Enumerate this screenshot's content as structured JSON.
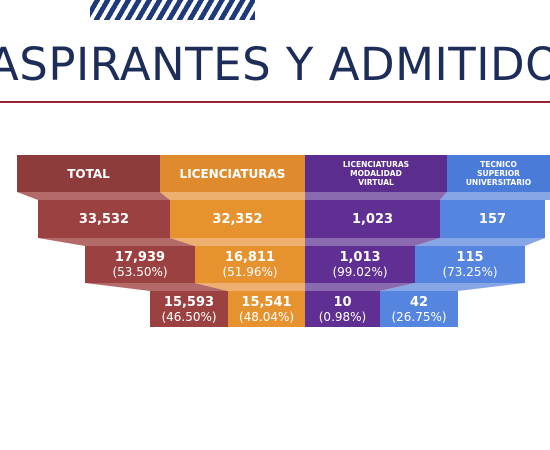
{
  "header": {
    "title": "ASPIRANTES Y ADMITIDOS"
  },
  "table": {
    "columns": [
      "TOTAL",
      "LICENCIATURAS",
      "LICENCIATURAS\nMODALIDAD\nVIRTUAL",
      "TECNICO\nSUPERIOR\nUNIVERSITARIO"
    ],
    "rows": [
      [
        {
          "value": "33,532"
        },
        {
          "value": "32,352"
        },
        {
          "value": "1,023"
        },
        {
          "value": "157"
        }
      ],
      [
        {
          "value": "17,939",
          "percent": "(53.50%)"
        },
        {
          "value": "16,811",
          "percent": "(51.96%)"
        },
        {
          "value": "1,013",
          "percent": "(99.02%)"
        },
        {
          "value": "115",
          "percent": "(73.25%)"
        }
      ],
      [
        {
          "value": "15,593",
          "percent": "(46.50%)"
        },
        {
          "value": "15,541",
          "percent": "(48.04%)"
        },
        {
          "value": "10",
          "percent": "(0.98%)"
        },
        {
          "value": "42",
          "percent": "(26.75%)"
        }
      ]
    ]
  }
}
